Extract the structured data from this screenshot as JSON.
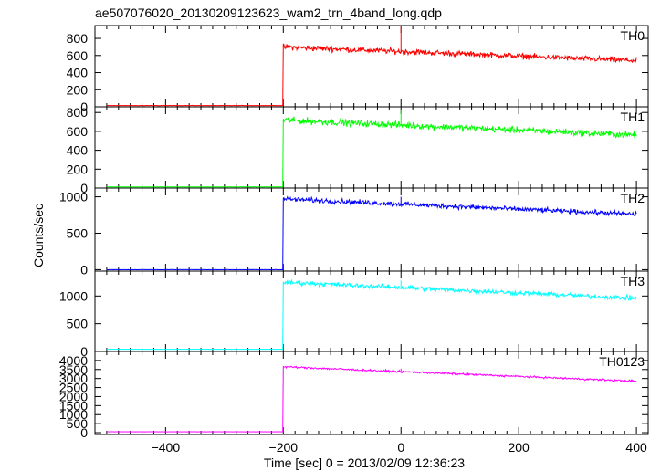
{
  "chart_data": {
    "type": "line",
    "title": "ae507076020_20130209123623_wam2_trn_4band_long.qdp",
    "xlabel": "Time [sec] 0 = 2013/02/09 12:36:23",
    "ylabel": "Counts/sec",
    "xlim": [
      -520,
      420
    ],
    "x_ticks": [
      -400,
      -200,
      0,
      200,
      400
    ],
    "grid": false,
    "panels": [
      {
        "name": "TH0",
        "color": "#ff0000",
        "ylim": [
          0,
          950
        ],
        "y_ticks": [
          0,
          200,
          400,
          600,
          800
        ],
        "pre_level": 15,
        "start_level": 700,
        "end_level": 540,
        "noise": 28,
        "spike": {
          "x": 0,
          "y": 950
        }
      },
      {
        "name": "TH1",
        "color": "#00ff00",
        "ylim": [
          0,
          860
        ],
        "y_ticks": [
          0,
          200,
          400,
          600,
          800
        ],
        "pre_level": 12,
        "start_level": 720,
        "end_level": 560,
        "noise": 30,
        "spike": {
          "x": 0,
          "y": 820
        }
      },
      {
        "name": "TH2",
        "color": "#0000ff",
        "ylim": [
          -20,
          1120
        ],
        "y_ticks": [
          0,
          500,
          1000
        ],
        "pre_level": 0,
        "start_level": 970,
        "end_level": 760,
        "noise": 28,
        "spike": {
          "x": 0,
          "y": 1000
        }
      },
      {
        "name": "TH3",
        "color": "#00ffff",
        "ylim": [
          0,
          1450
        ],
        "y_ticks": [
          0,
          500,
          1000
        ],
        "pre_level": 40,
        "start_level": 1250,
        "end_level": 960,
        "noise": 35,
        "spike": {
          "x": 0,
          "y": 1280
        }
      },
      {
        "name": "TH0123",
        "color": "#ff00ff",
        "ylim": [
          -100,
          4500
        ],
        "y_ticks": [
          0,
          500,
          1000,
          1500,
          2000,
          2500,
          3000,
          3500,
          4000
        ],
        "pre_level": 50,
        "start_level": 3650,
        "end_level": 2850,
        "noise": 45,
        "spike": {
          "x": 0,
          "y": 3550
        }
      }
    ]
  }
}
